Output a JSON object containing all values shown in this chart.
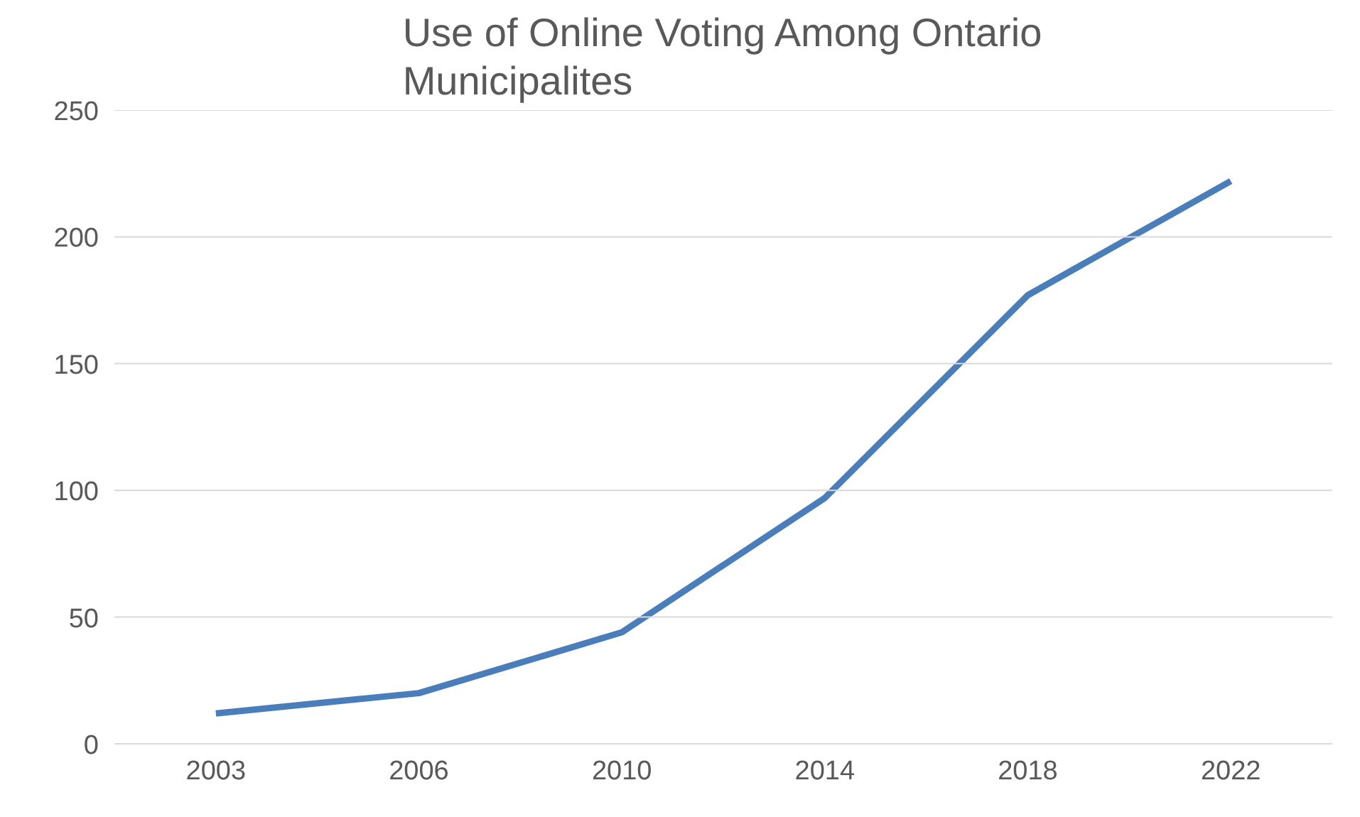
{
  "chart_data": {
    "type": "line",
    "title": "Use of Online Voting Among Ontario\nMunicipalites",
    "categories": [
      "2003",
      "2006",
      "2010",
      "2014",
      "2018",
      "2022"
    ],
    "series": [
      {
        "color": "#4a7ebb",
        "values": [
          12,
          20,
          44,
          97,
          177,
          222
        ]
      }
    ],
    "ylim": [
      0,
      250
    ],
    "yticks": [
      0,
      50,
      100,
      150,
      200,
      250
    ],
    "grid": "y",
    "marker": "none",
    "line_style": "solid"
  }
}
